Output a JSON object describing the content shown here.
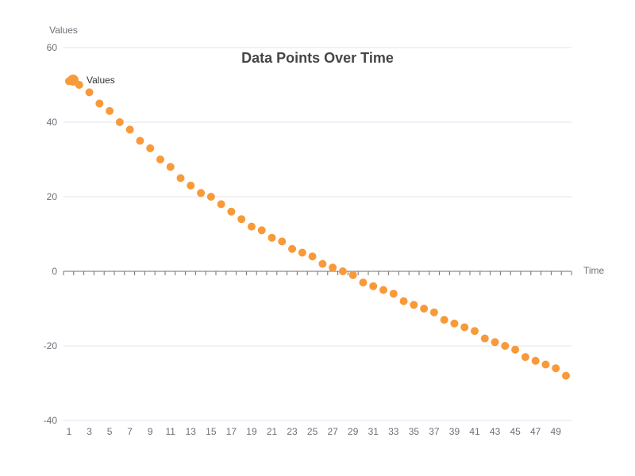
{
  "chart_data": {
    "type": "scatter",
    "title": "Data Points Over Time",
    "xlabel": "Time",
    "ylabel": "Values",
    "xlim": [
      1,
      50
    ],
    "ylim": [
      -40,
      60
    ],
    "x_tick_labels": [
      "1",
      "3",
      "5",
      "7",
      "9",
      "11",
      "13",
      "15",
      "17",
      "19",
      "21",
      "23",
      "25",
      "27",
      "29",
      "31",
      "33",
      "35",
      "37",
      "39",
      "41",
      "43",
      "45",
      "47",
      "49"
    ],
    "y_tick_labels": [
      "60",
      "40",
      "20",
      "0",
      "-20",
      "-40"
    ],
    "y_ticks": [
      60,
      40,
      20,
      0,
      -20,
      -40
    ],
    "grid": true,
    "legend_position": "top-left",
    "color": "#f89a3a",
    "series": [
      {
        "name": "Values",
        "x": [
          1,
          2,
          3,
          4,
          5,
          6,
          7,
          8,
          9,
          10,
          11,
          12,
          13,
          14,
          15,
          16,
          17,
          18,
          19,
          20,
          21,
          22,
          23,
          24,
          25,
          26,
          27,
          28,
          29,
          30,
          31,
          32,
          33,
          34,
          35,
          36,
          37,
          38,
          39,
          40,
          41,
          42,
          43,
          44,
          45,
          46,
          47,
          48,
          49,
          50
        ],
        "y": [
          51,
          50,
          48,
          45,
          43,
          40,
          38,
          35,
          33,
          30,
          28,
          25,
          23,
          21,
          20,
          18,
          16,
          14,
          12,
          11,
          9,
          8,
          6,
          5,
          4,
          2,
          1,
          0,
          -1,
          -3,
          -4,
          -5,
          -6,
          -8,
          -9,
          -10,
          -11,
          -13,
          -14,
          -15,
          -16,
          -18,
          -19,
          -20,
          -21,
          -23,
          -24,
          -25,
          -26,
          -28
        ]
      }
    ]
  }
}
